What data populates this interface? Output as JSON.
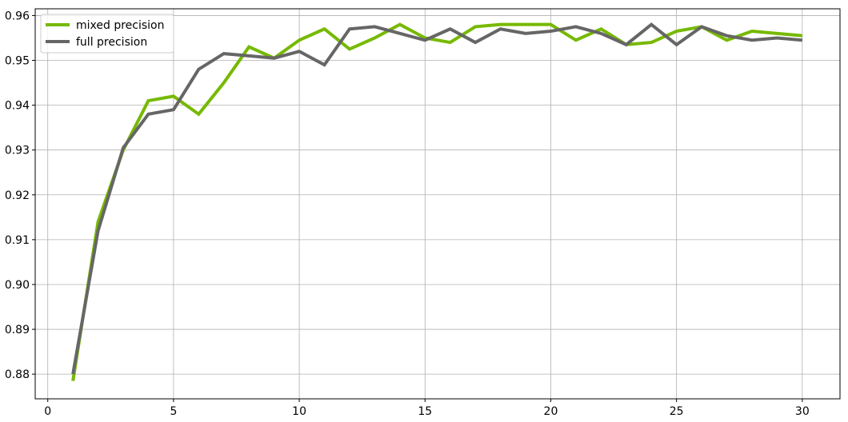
{
  "chart_data": {
    "type": "line",
    "title": "",
    "xlabel": "",
    "ylabel": "",
    "xlim": [
      -0.5,
      31.5
    ],
    "ylim": [
      0.8745,
      0.9615
    ],
    "xticks": [
      0,
      5,
      10,
      15,
      20,
      25,
      30
    ],
    "xtick_labels": [
      "0",
      "5",
      "10",
      "15",
      "20",
      "25",
      "30"
    ],
    "yticks": [
      0.88,
      0.89,
      0.9,
      0.91,
      0.92,
      0.93,
      0.94,
      0.95,
      0.96
    ],
    "ytick_labels": [
      "0.88",
      "0.89",
      "0.90",
      "0.91",
      "0.92",
      "0.93",
      "0.94",
      "0.95",
      "0.96"
    ],
    "grid": true,
    "legend_position": "top-left",
    "x": [
      1,
      2,
      3,
      4,
      5,
      6,
      7,
      8,
      9,
      10,
      11,
      12,
      13,
      14,
      15,
      16,
      17,
      18,
      19,
      20,
      21,
      22,
      23,
      24,
      25,
      26,
      27,
      28,
      29,
      30
    ],
    "series": [
      {
        "name": "mixed precision",
        "color": "#76b900",
        "values": [
          0.8785,
          0.914,
          0.93,
          0.941,
          0.942,
          0.938,
          0.945,
          0.953,
          0.9505,
          0.9545,
          0.957,
          0.9525,
          0.955,
          0.958,
          0.955,
          0.954,
          0.9575,
          0.958,
          0.958,
          0.958,
          0.9545,
          0.957,
          0.9535,
          0.954,
          0.9565,
          0.9575,
          0.9545,
          0.9565,
          0.956,
          0.9555
        ]
      },
      {
        "name": "full precision",
        "color": "#666666",
        "values": [
          0.88,
          0.912,
          0.9305,
          0.938,
          0.939,
          0.948,
          0.9515,
          0.951,
          0.9505,
          0.952,
          0.949,
          0.957,
          0.9575,
          0.956,
          0.9545,
          0.957,
          0.954,
          0.957,
          0.956,
          0.9565,
          0.9575,
          0.956,
          0.9535,
          0.958,
          0.9535,
          0.9575,
          0.9555,
          0.9545,
          0.955,
          0.9545
        ]
      }
    ]
  }
}
